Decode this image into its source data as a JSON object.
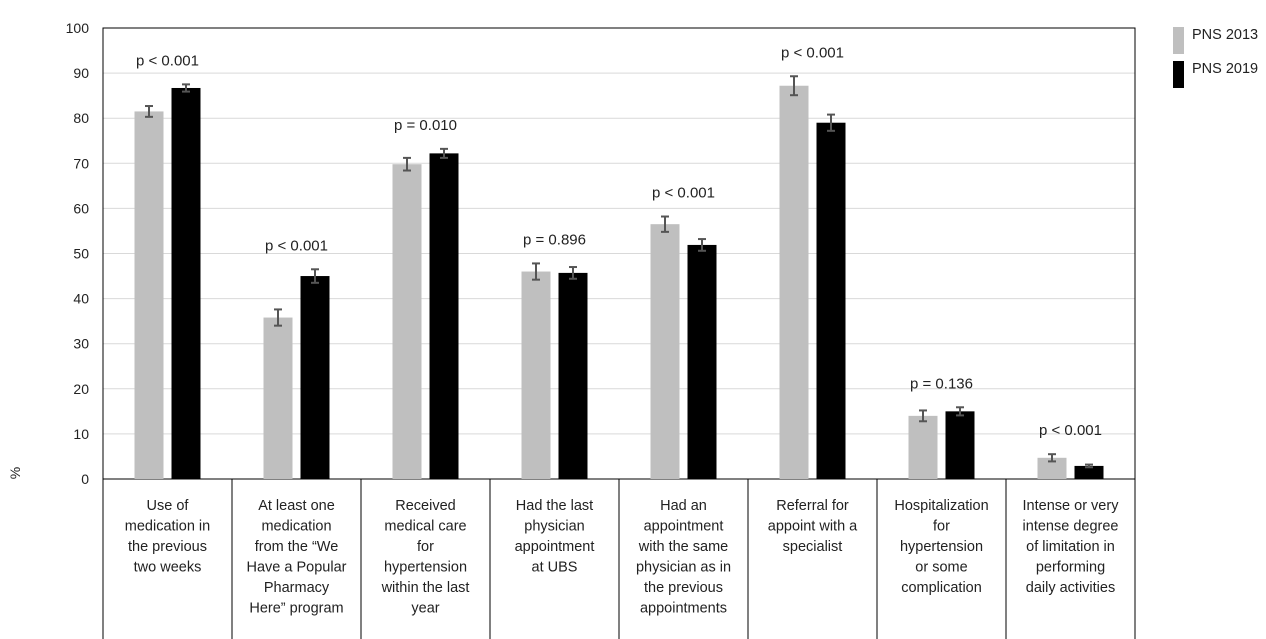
{
  "chart_data": {
    "type": "bar",
    "ylabel": "%",
    "ylim": [
      0,
      100
    ],
    "yticks": [
      0,
      10,
      20,
      30,
      40,
      50,
      60,
      70,
      80,
      90,
      100
    ],
    "grid": true,
    "legend_position": "top-right",
    "categories": [
      [
        "Use of",
        "medication in",
        "the previous",
        "two weeks"
      ],
      [
        "At least one",
        "medication",
        "from the “We",
        "Have a Popular",
        "Pharmacy",
        "Here” program"
      ],
      [
        "Received",
        "medical care",
        "for",
        "hypertension",
        "within the last",
        "year"
      ],
      [
        "Had the last",
        "physician",
        "appointment",
        "at UBS"
      ],
      [
        "Had an",
        "appointment",
        "with the same",
        "physician as in",
        "the previous",
        "appointments"
      ],
      [
        "Referral for",
        "appoint with a",
        "specialist"
      ],
      [
        "Hospitalization",
        "for",
        "hypertension",
        "or some",
        "complication"
      ],
      [
        "Intense or very",
        "intense degree",
        "of limitation in",
        "performing",
        "daily activities"
      ]
    ],
    "series": [
      {
        "name": "PNS 2013",
        "color": "#bfbfbf",
        "values": [
          81.5,
          35.8,
          69.8,
          46.0,
          56.5,
          87.2,
          14.0,
          4.7
        ],
        "errors": [
          1.2,
          1.8,
          1.4,
          1.8,
          1.7,
          2.1,
          1.2,
          0.8
        ]
      },
      {
        "name": "PNS 2019",
        "color": "#000000",
        "values": [
          86.7,
          45.0,
          72.2,
          45.7,
          51.9,
          79.0,
          15.0,
          2.9
        ],
        "errors": [
          0.8,
          1.5,
          1.0,
          1.3,
          1.3,
          1.8,
          0.9,
          0.3
        ]
      }
    ],
    "annotations": [
      "p < 0.001",
      "p < 0.001",
      "p = 0.010",
      "p = 0.896",
      "p < 0.001",
      "p < 0.001",
      "p = 0.136",
      "p < 0.001"
    ]
  }
}
